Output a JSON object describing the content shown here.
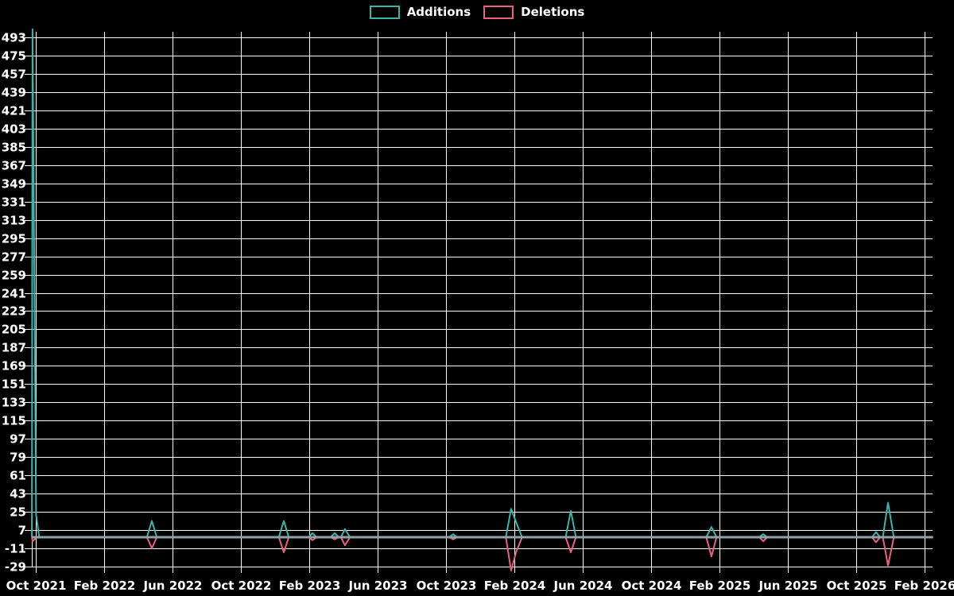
{
  "chart_data": {
    "type": "line",
    "title": "",
    "background_color": "#000000",
    "grid_color": "#ffffff",
    "axis_color": "#ffffff",
    "zero_line_color": "#8da4ad",
    "legend_position": "top-center",
    "x_axis": {
      "unit": "months since Oct 2021 (weekly data, fractional positions)",
      "range_months": [
        0,
        52.5
      ],
      "tick_labels": [
        "Oct 2021",
        "Feb 2022",
        "Jun 2022",
        "Oct 2022",
        "Feb 2023",
        "Jun 2023",
        "Oct 2023",
        "Feb 2024",
        "Jun 2024",
        "Oct 2024",
        "Feb 2025",
        "Jun 2025",
        "Oct 2025",
        "Feb 2026"
      ]
    },
    "y_axis": {
      "tick_min": -29,
      "tick_max": 493,
      "tick_step": 18,
      "data_range": [
        -33,
        501
      ],
      "tick_labels": [
        "493",
        "475",
        "457",
        "439",
        "421",
        "403",
        "385",
        "367",
        "349",
        "331",
        "313",
        "295",
        "277",
        "259",
        "241",
        "223",
        "205",
        "187",
        "169",
        "151",
        "133",
        "115",
        "97",
        "79",
        "61",
        "43",
        "25",
        "7",
        "-11",
        "-29"
      ]
    },
    "series": [
      {
        "name": "Additions",
        "color": "#3ab5ac",
        "points": [
          [
            -0.23,
            0
          ],
          [
            -0.19,
            501
          ],
          [
            0.02,
            22
          ],
          [
            0.2,
            0
          ],
          [
            6.5,
            0
          ],
          [
            6.79,
            16
          ],
          [
            7.08,
            0
          ],
          [
            14.22,
            0
          ],
          [
            14.51,
            16
          ],
          [
            14.8,
            0
          ],
          [
            15.95,
            0
          ],
          [
            16.19,
            4
          ],
          [
            16.43,
            0
          ],
          [
            17.25,
            0
          ],
          [
            17.49,
            4
          ],
          [
            17.73,
            0
          ],
          [
            17.85,
            0
          ],
          [
            18.09,
            8
          ],
          [
            18.38,
            0
          ],
          [
            24.18,
            0
          ],
          [
            24.42,
            3
          ],
          [
            24.66,
            0
          ],
          [
            27.5,
            0
          ],
          [
            27.81,
            28
          ],
          [
            28.1,
            15
          ],
          [
            28.45,
            0
          ],
          [
            31.0,
            0
          ],
          [
            31.3,
            26
          ],
          [
            31.6,
            0
          ],
          [
            39.23,
            0
          ],
          [
            39.53,
            10
          ],
          [
            39.83,
            0
          ],
          [
            42.32,
            0
          ],
          [
            42.56,
            3
          ],
          [
            42.8,
            0
          ],
          [
            48.92,
            0
          ],
          [
            49.16,
            5
          ],
          [
            49.4,
            0
          ],
          [
            49.56,
            0
          ],
          [
            49.86,
            34
          ],
          [
            50.2,
            0
          ],
          [
            52.5,
            0
          ]
        ]
      },
      {
        "name": "Deletions",
        "color": "#ef5f7d",
        "points": [
          [
            -0.23,
            0
          ],
          [
            -0.19,
            -4
          ],
          [
            0.05,
            0
          ],
          [
            6.5,
            0
          ],
          [
            6.79,
            -11
          ],
          [
            7.08,
            0
          ],
          [
            14.22,
            0
          ],
          [
            14.51,
            -15
          ],
          [
            14.8,
            0
          ],
          [
            15.95,
            0
          ],
          [
            16.19,
            -3
          ],
          [
            16.43,
            0
          ],
          [
            17.25,
            0
          ],
          [
            17.49,
            -2
          ],
          [
            17.73,
            0
          ],
          [
            17.85,
            0
          ],
          [
            18.09,
            -8
          ],
          [
            18.38,
            0
          ],
          [
            24.18,
            0
          ],
          [
            24.42,
            -2
          ],
          [
            24.66,
            0
          ],
          [
            27.5,
            0
          ],
          [
            27.81,
            -33
          ],
          [
            28.1,
            -15
          ],
          [
            28.45,
            0
          ],
          [
            31.0,
            0
          ],
          [
            31.3,
            -15
          ],
          [
            31.6,
            0
          ],
          [
            39.23,
            0
          ],
          [
            39.53,
            -19
          ],
          [
            39.83,
            0
          ],
          [
            42.32,
            0
          ],
          [
            42.56,
            -4
          ],
          [
            42.8,
            0
          ],
          [
            48.92,
            0
          ],
          [
            49.16,
            -5
          ],
          [
            49.4,
            0
          ],
          [
            49.56,
            0
          ],
          [
            49.86,
            -28
          ],
          [
            50.2,
            0
          ],
          [
            52.5,
            0
          ]
        ]
      }
    ],
    "spikes_summary": [
      {
        "approx_date": "Oct 2021",
        "additions": 501,
        "deletions": -4
      },
      {
        "approx_date": "Oct 2021 (following week)",
        "additions": 22,
        "deletions": 0
      },
      {
        "approx_date": "May 2022",
        "additions": 16,
        "deletions": -11
      },
      {
        "approx_date": "Dec 2022",
        "additions": 16,
        "deletions": -15
      },
      {
        "approx_date": "Feb 2023",
        "additions": 4,
        "deletions": -3
      },
      {
        "approx_date": "Mar 2023",
        "additions": 4,
        "deletions": -2
      },
      {
        "approx_date": "Apr 2023",
        "additions": 8,
        "deletions": -8
      },
      {
        "approx_date": "Oct 2023",
        "additions": 3,
        "deletions": -2
      },
      {
        "approx_date": "Feb 2024",
        "additions": 28,
        "deletions": -33
      },
      {
        "approx_date": "Jun 2024",
        "additions": 26,
        "deletions": -15
      },
      {
        "approx_date": "Feb 2025",
        "additions": 10,
        "deletions": -19
      },
      {
        "approx_date": "May 2025",
        "additions": 3,
        "deletions": -4
      },
      {
        "approx_date": "Nov 2025",
        "additions": 5,
        "deletions": -5
      },
      {
        "approx_date": "Dec 2025",
        "additions": 34,
        "deletions": -28
      }
    ]
  }
}
